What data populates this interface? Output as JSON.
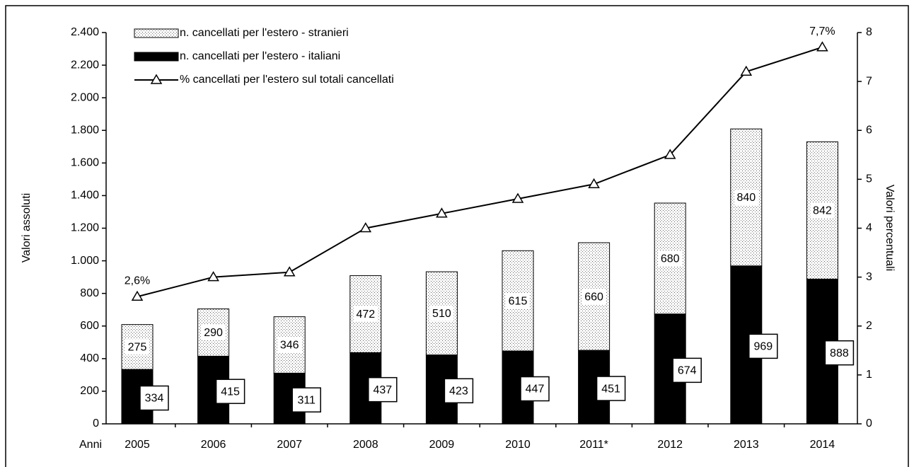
{
  "chart_data": {
    "type": "bar",
    "stacked": true,
    "categories": [
      "2005",
      "2006",
      "2007",
      "2008",
      "2009",
      "2010",
      "2011*",
      "2012",
      "2013",
      "2014"
    ],
    "xlabel": "Anni",
    "ylabel": "Valori assoluti",
    "y2label": "Valori percentuali",
    "series": [
      {
        "name": "n. cancellati per l'estero - italiani",
        "color": "#000000",
        "fill": "solid",
        "values": [
          334,
          415,
          311,
          437,
          423,
          447,
          451,
          674,
          969,
          888
        ]
      },
      {
        "name": "n. cancellati per l'estero - stranieri",
        "color": "#000000",
        "fill": "dots",
        "values": [
          275,
          290,
          346,
          472,
          510,
          615,
          660,
          680,
          840,
          842
        ]
      },
      {
        "name": "% cancellati per l'estero sul  totali cancellati",
        "color": "#000000",
        "type": "line",
        "marker": "triangle",
        "axis": "y2",
        "values": [
          2.6,
          3.0,
          3.1,
          4.0,
          4.3,
          4.6,
          4.9,
          5.5,
          7.2,
          7.7
        ],
        "value_labels": [
          "2,6%",
          null,
          null,
          null,
          null,
          null,
          null,
          null,
          null,
          "7,7%"
        ]
      }
    ],
    "legend_order": [
      1,
      0,
      2
    ],
    "ylim": [
      0,
      2400
    ],
    "yticks": [
      0,
      200,
      400,
      600,
      800,
      {
        "value": 1000,
        "label": "1.000"
      },
      {
        "value": 1200,
        "label": "1.200"
      },
      {
        "value": 1400,
        "label": "1.400"
      },
      {
        "value": 1600,
        "label": "1.600"
      },
      {
        "value": 1800,
        "label": "1.800"
      },
      {
        "value": 2000,
        "label": "2.000"
      },
      {
        "value": 2200,
        "label": "2.200"
      },
      {
        "value": 2400,
        "label": "2.400"
      }
    ],
    "y2lim": [
      0,
      8
    ],
    "y2ticks": [
      0,
      1,
      2,
      3,
      4,
      5,
      6,
      7,
      8
    ],
    "grid": false
  }
}
